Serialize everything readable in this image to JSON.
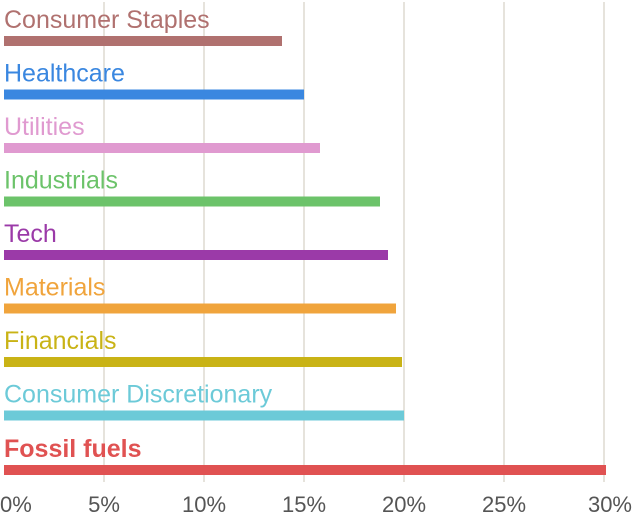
{
  "chart_data": {
    "type": "bar",
    "orientation": "horizontal",
    "title": "",
    "xlabel": "",
    "ylabel": "",
    "xlim": [
      0,
      30
    ],
    "x_ticks": [
      "0%",
      "5%",
      "10%",
      "15%",
      "20%",
      "25%",
      "30%"
    ],
    "x_tick_values": [
      0,
      5,
      10,
      15,
      20,
      25,
      30
    ],
    "grid": "vertical",
    "categories": [
      "Consumer Staples",
      "Healthcare",
      "Utilities",
      "Industrials",
      "Tech",
      "Materials",
      "Financials",
      "Consumer Discretionary",
      "Fossil fuels"
    ],
    "values": [
      13.9,
      15.0,
      15.8,
      18.8,
      19.2,
      19.6,
      19.9,
      20.0,
      30.1
    ],
    "colors": [
      "#b0716f",
      "#3a87e0",
      "#e09ad0",
      "#6cc36a",
      "#9b3aa8",
      "#f0a43c",
      "#c9b316",
      "#6ccad8",
      "#e05252"
    ],
    "bold_categories": [
      "Fossil fuels"
    ],
    "grid_color": "#e6e3dc",
    "axis_label_color": "#555555"
  }
}
